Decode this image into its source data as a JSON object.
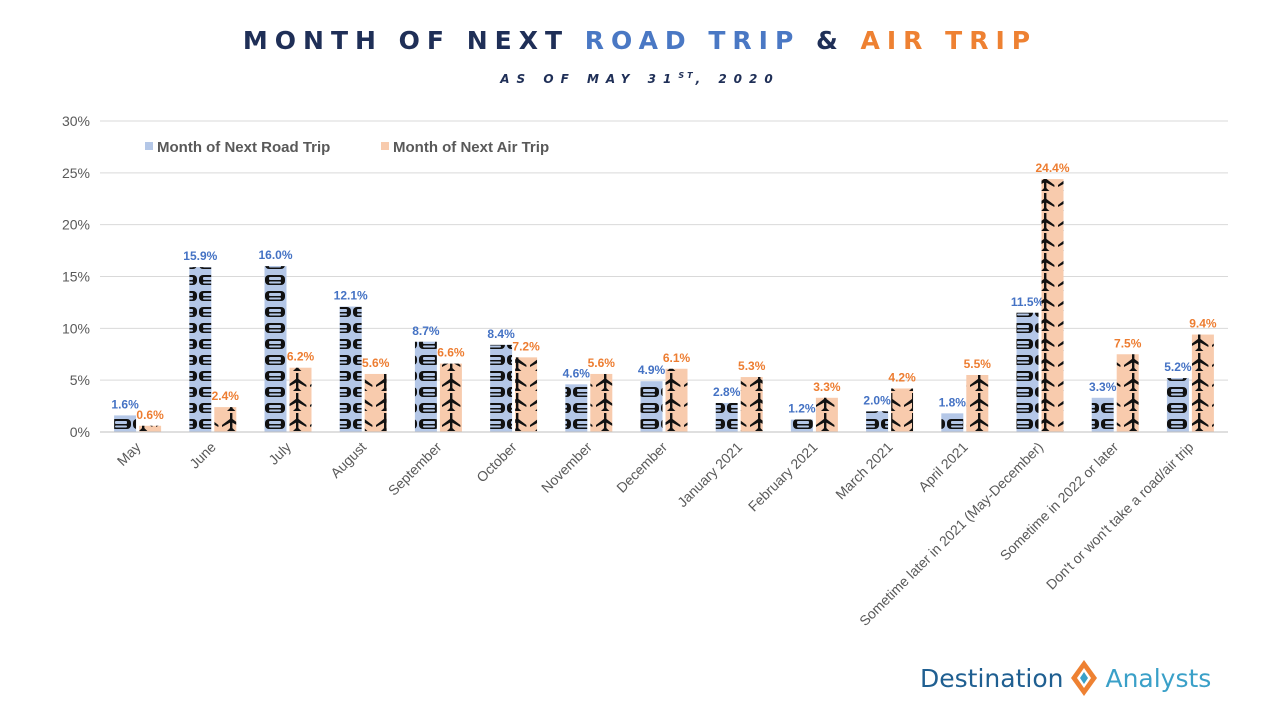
{
  "header": {
    "title_part1": "MONTH OF NEXT ",
    "title_part2": "ROAD TRIP",
    "title_part3": " & ",
    "title_part4": "AIR TRIP",
    "subtitle_main": "AS OF MAY 31",
    "subtitle_sup": "ST",
    "subtitle_end": ", 2020"
  },
  "chart_data": {
    "type": "bar",
    "categories": [
      "May",
      "June",
      "July",
      "August",
      "September",
      "October",
      "November",
      "December",
      "January 2021",
      "February 2021",
      "March 2021",
      "April 2021",
      "Sometime later in 2021 (May-December)",
      "Sometime in 2022 or later",
      "Don't or won't take a road/air trip"
    ],
    "series": [
      {
        "name": "Month of Next Road Trip",
        "values": [
          1.6,
          15.9,
          16.0,
          12.1,
          8.7,
          8.4,
          4.6,
          4.9,
          2.8,
          1.2,
          2.0,
          1.8,
          11.5,
          3.3,
          5.2
        ],
        "color": "#b4c7e7",
        "label_color": "#4472c4",
        "icon": "car-icon"
      },
      {
        "name": "Month of Next Air Trip",
        "values": [
          0.6,
          2.4,
          6.2,
          5.6,
          6.6,
          7.2,
          5.6,
          6.1,
          5.3,
          3.3,
          4.2,
          5.5,
          24.4,
          7.5,
          9.4
        ],
        "color": "#f8cbad",
        "label_color": "#ed7d31",
        "icon": "airplane-icon"
      }
    ],
    "y_ticks": [
      "0%",
      "5%",
      "10%",
      "15%",
      "20%",
      "25%",
      "30%"
    ],
    "ylim": [
      0,
      30
    ],
    "grid": true,
    "legend_position": "top-left",
    "value_suffix": "%"
  },
  "logo": {
    "part1": "Destination",
    "part2": "Analysts"
  }
}
